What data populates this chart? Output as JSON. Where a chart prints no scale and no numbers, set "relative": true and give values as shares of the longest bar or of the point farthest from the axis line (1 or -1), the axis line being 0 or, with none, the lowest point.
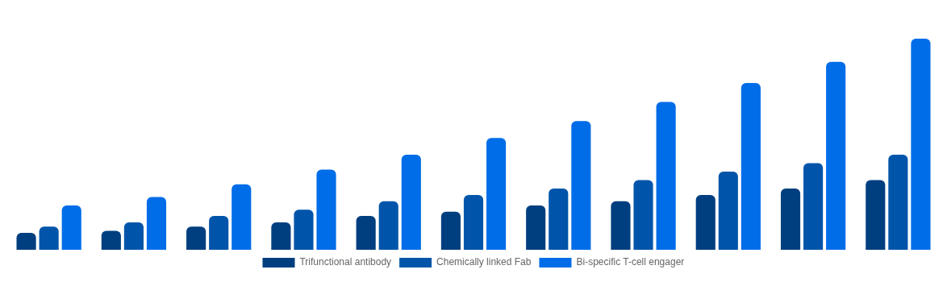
{
  "chart_data": {
    "type": "bar",
    "relative": true,
    "legend": "bottom",
    "categories": [
      null,
      null,
      null,
      null,
      null,
      null,
      null,
      null,
      null,
      null,
      null
    ],
    "series": [
      {
        "name": "Trifunctional antibody",
        "color": "#003f7f",
        "values": [
          0.08,
          0.09,
          0.11,
          0.13,
          0.16,
          0.18,
          0.21,
          0.23,
          0.26,
          0.29,
          0.33
        ]
      },
      {
        "name": "Chemically linked Fab",
        "color": "#0055aa",
        "values": [
          0.11,
          0.13,
          0.16,
          0.19,
          0.23,
          0.26,
          0.29,
          0.33,
          0.37,
          0.41,
          0.45
        ]
      },
      {
        "name": "Bi-specific T-cell engager",
        "color": "#006de8",
        "values": [
          0.21,
          0.25,
          0.31,
          0.38,
          0.45,
          0.53,
          0.61,
          0.7,
          0.79,
          0.89,
          1
        ]
      }
    ]
  }
}
